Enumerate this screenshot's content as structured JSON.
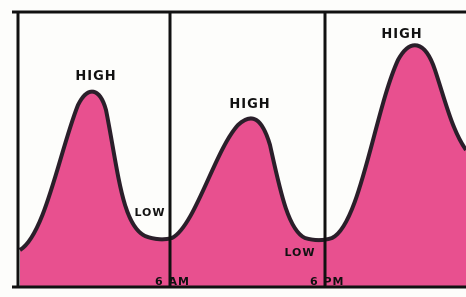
{
  "labels": {
    "high_1": "HIGH",
    "high_2": "HIGH",
    "high_3": "HIGH",
    "low_1": "LOW",
    "low_2": "LOW",
    "time_1": "6 AM",
    "time_2": "6 PM"
  }
}
